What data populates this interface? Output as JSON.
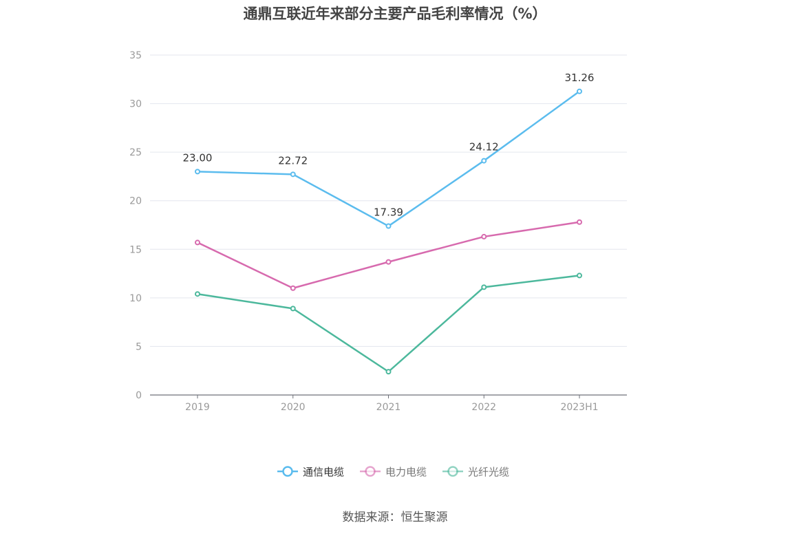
{
  "title": "通鼎互联近年来部分主要产品毛利率情况（%）",
  "source": "数据来源：恒生聚源",
  "chart_data": {
    "type": "line",
    "title": "通鼎互联近年来部分主要产品毛利率情况（%）",
    "categories": [
      "2019",
      "2020",
      "2021",
      "2022",
      "2023H1"
    ],
    "ylim": [
      0,
      35
    ],
    "yticks": [
      0,
      5,
      10,
      15,
      20,
      25,
      30,
      35
    ],
    "grid": true,
    "legend_position": "bottom",
    "series": [
      {
        "name": "通信电缆",
        "color": "#5bbcee",
        "values": [
          23.0,
          22.72,
          17.39,
          24.12,
          31.26
        ],
        "labels": [
          "23.00",
          "22.72",
          "17.39",
          "24.12",
          "31.26"
        ],
        "show_labels": true
      },
      {
        "name": "电力电缆",
        "color": "#d76aae",
        "values": [
          15.7,
          11.0,
          13.7,
          16.3,
          17.8
        ],
        "show_labels": false
      },
      {
        "name": "光纤光缆",
        "color": "#4cb89c",
        "values": [
          10.4,
          8.9,
          2.4,
          11.1,
          12.3
        ],
        "show_labels": false
      }
    ]
  }
}
